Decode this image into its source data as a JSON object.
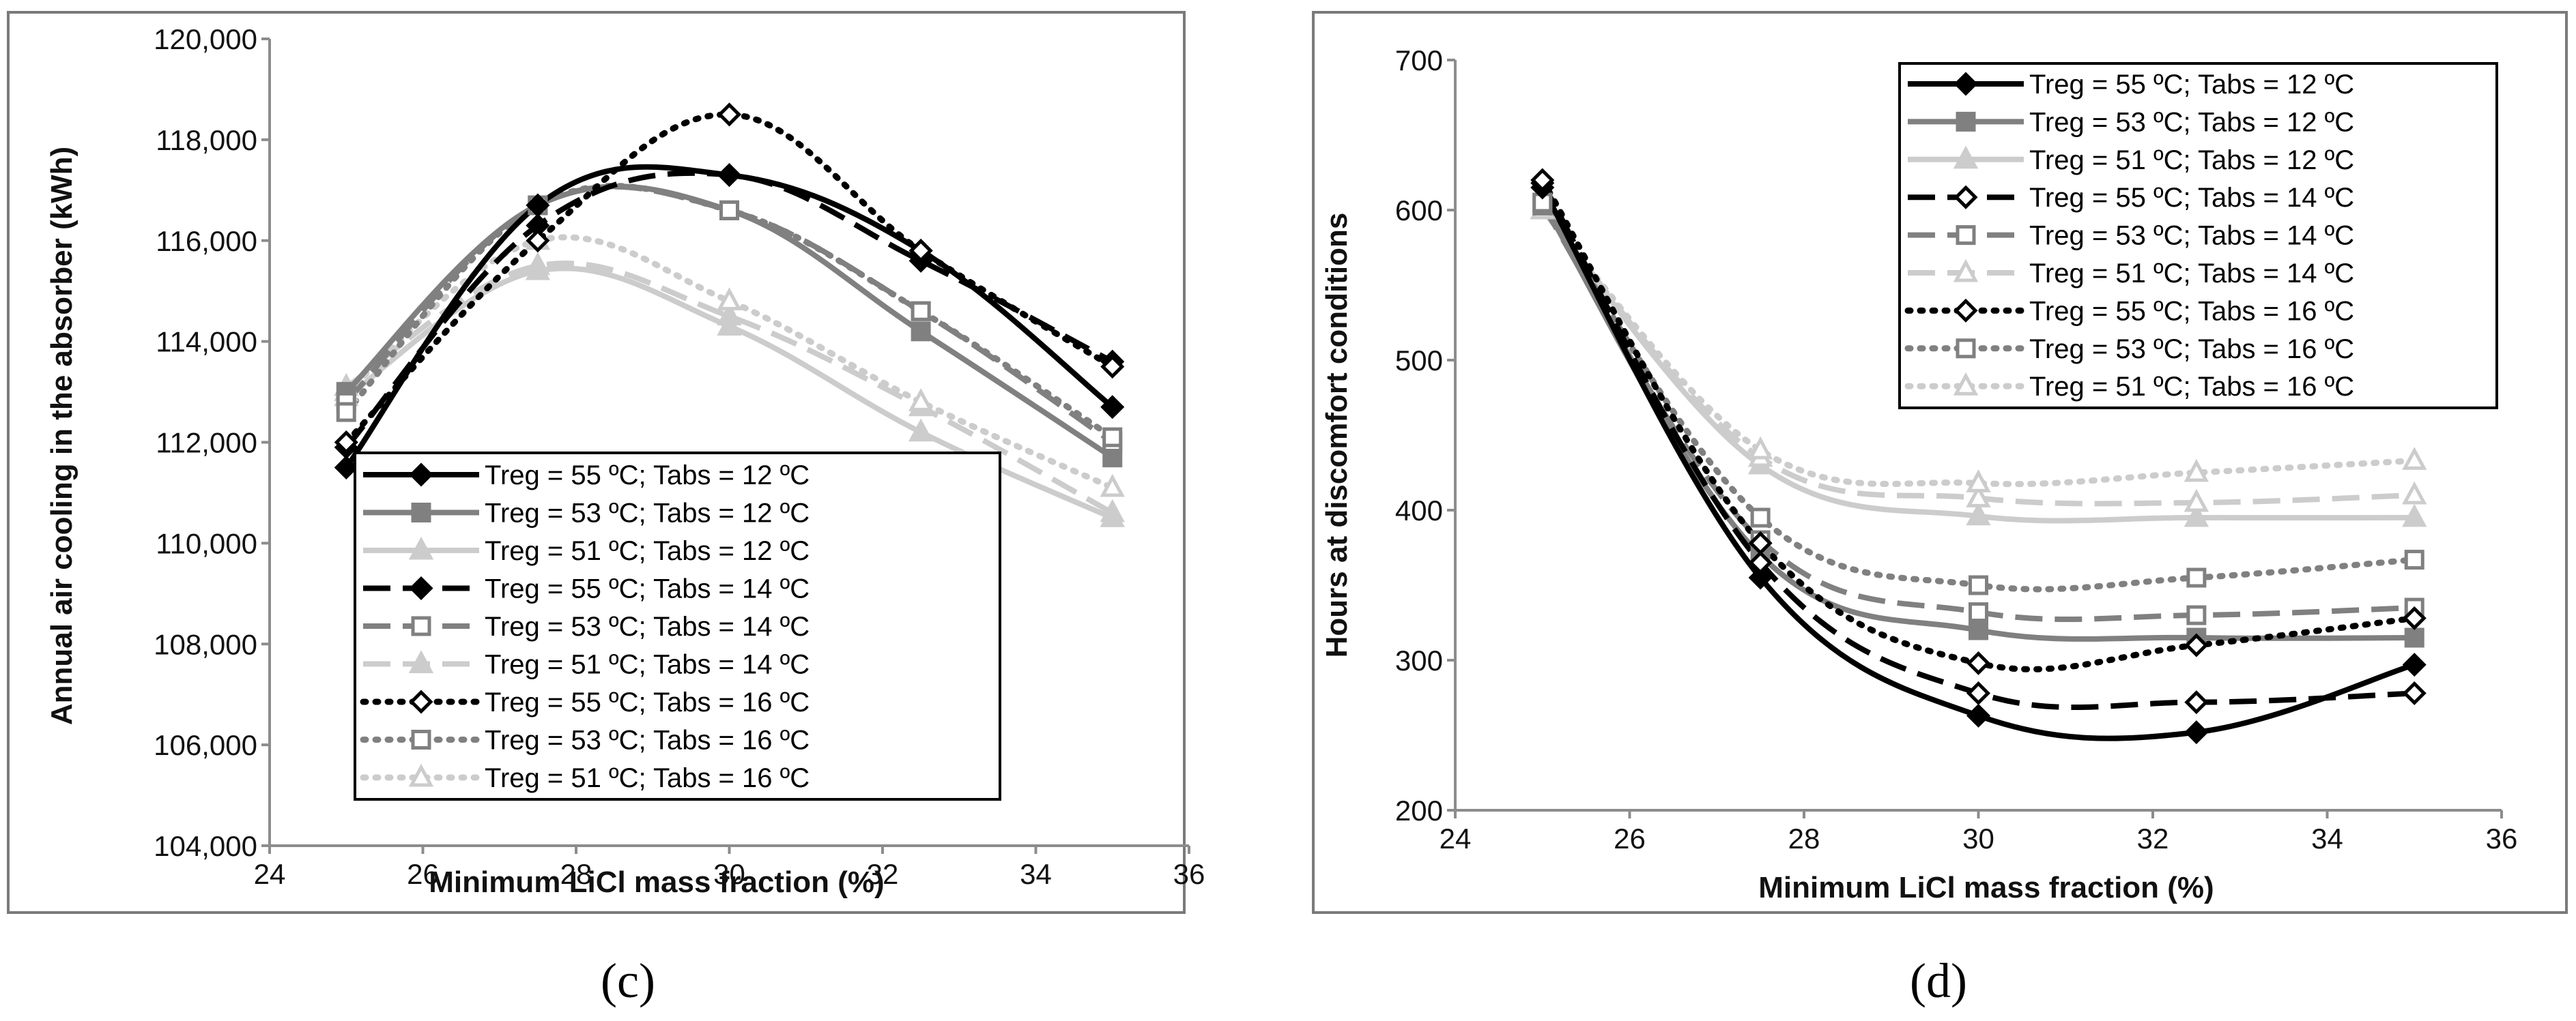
{
  "panels": [
    {
      "label": "(c)",
      "chart_data": {
        "type": "line",
        "title": "",
        "xlabel": "Minimum LiCl mass fraction (%)",
        "ylabel": "Annual air cooling in the absorber (kWh)",
        "xlim": [
          24,
          36
        ],
        "ylim": [
          104000,
          120000
        ],
        "xticks": [
          24,
          26,
          28,
          30,
          32,
          34,
          36
        ],
        "yticks": [
          104000,
          106000,
          108000,
          110000,
          112000,
          114000,
          116000,
          118000,
          120000
        ],
        "xtick_labels": [
          "24",
          "26",
          "28",
          "30",
          "32",
          "34",
          "36"
        ],
        "ytick_labels": [
          "104,000",
          "106,000",
          "108,000",
          "110,000",
          "112,000",
          "114,000",
          "116,000",
          "118,000",
          "120,000"
        ],
        "grid": false,
        "legend_position": "bottom-center",
        "x": [
          25,
          27.5,
          30,
          32.5,
          35
        ],
        "series": [
          {
            "name": "Treg = 55 ºC; Tabs = 12 ºC",
            "values": [
              111500,
              116700,
              117300,
              115800,
              112700
            ],
            "color": "#000000",
            "dash": "solid",
            "marker": "diamond",
            "fill": "#000000"
          },
          {
            "name": "Treg = 53 ºC; Tabs = 12 ºC",
            "values": [
              113000,
              116700,
              116600,
              114200,
              111700
            ],
            "color": "#808080",
            "dash": "solid",
            "marker": "square",
            "fill": "#808080"
          },
          {
            "name": "Treg = 51 ºC; Tabs = 12 ºC",
            "values": [
              112900,
              115400,
              114300,
              112200,
              110500
            ],
            "color": "#cccccc",
            "dash": "solid",
            "marker": "triangle",
            "fill": "#cccccc"
          },
          {
            "name": "Treg = 55 ºC; Tabs = 14 ºC",
            "values": [
              111900,
              116300,
              117300,
              115600,
              113600
            ],
            "color": "#000000",
            "dash": "dash",
            "marker": "diamond",
            "fill": "#000000"
          },
          {
            "name": "Treg = 53 ºC; Tabs = 14 ºC",
            "values": [
              112800,
              116700,
              116600,
              114600,
              112000
            ],
            "color": "#808080",
            "dash": "dash",
            "marker": "square-open",
            "fill": "#ffffff"
          },
          {
            "name": "Treg = 51 ºC; Tabs = 14 ºC",
            "values": [
              113100,
              115500,
              114500,
              112700,
              110600
            ],
            "color": "#cccccc",
            "dash": "dash",
            "marker": "triangle",
            "fill": "#cccccc"
          },
          {
            "name": "Treg = 55 ºC; Tabs = 16 ºC",
            "values": [
              112000,
              116000,
              118500,
              115800,
              113500
            ],
            "color": "#000000",
            "dash": "dot",
            "marker": "diamond-open",
            "fill": "#ffffff"
          },
          {
            "name": "Treg = 53 ºC; Tabs = 16 ºC",
            "values": [
              112600,
              116700,
              116600,
              114600,
              112100
            ],
            "color": "#808080",
            "dash": "dot",
            "marker": "square-open",
            "fill": "#ffffff"
          },
          {
            "name": "Treg = 51 ºC; Tabs = 16 ºC",
            "values": [
              113000,
              116000,
              114800,
              112800,
              111100
            ],
            "color": "#cccccc",
            "dash": "dot",
            "marker": "triangle-open",
            "fill": "#ffffff"
          }
        ]
      }
    },
    {
      "label": "(d)",
      "chart_data": {
        "type": "line",
        "title": "",
        "xlabel": "Minimum LiCl mass fraction (%)",
        "ylabel": "Hours at  discomfort conditions",
        "xlim": [
          24,
          36
        ],
        "ylim": [
          200,
          700
        ],
        "xticks": [
          24,
          26,
          28,
          30,
          32,
          34,
          36
        ],
        "yticks": [
          200,
          300,
          400,
          500,
          600,
          700
        ],
        "xtick_labels": [
          "24",
          "26",
          "28",
          "30",
          "32",
          "34",
          "36"
        ],
        "ytick_labels": [
          "200",
          "300",
          "400",
          "500",
          "600",
          "700"
        ],
        "grid": false,
        "legend_position": "top-right",
        "x": [
          25,
          27.5,
          30,
          32.5,
          35
        ],
        "series": [
          {
            "name": "Treg = 55 ºC; Tabs = 12 ºC",
            "values": [
              615,
              355,
              263,
              252,
              297
            ],
            "color": "#000000",
            "dash": "solid",
            "marker": "diamond",
            "fill": "#000000"
          },
          {
            "name": "Treg = 53 ºC; Tabs = 12 ºC",
            "values": [
              605,
              370,
              320,
              315,
              315
            ],
            "color": "#808080",
            "dash": "solid",
            "marker": "square",
            "fill": "#808080"
          },
          {
            "name": "Treg = 51 ºC; Tabs = 12 ºC",
            "values": [
              600,
              430,
              396,
              395,
              395
            ],
            "color": "#cccccc",
            "dash": "solid",
            "marker": "triangle",
            "fill": "#cccccc"
          },
          {
            "name": "Treg = 55 ºC; Tabs = 14 ºC",
            "values": [
              618,
              365,
              278,
              272,
              278
            ],
            "color": "#000000",
            "dash": "dash",
            "marker": "diamond-open",
            "fill": "#ffffff"
          },
          {
            "name": "Treg = 53 ºC; Tabs = 14 ºC",
            "values": [
              603,
              380,
              332,
              330,
              335
            ],
            "color": "#808080",
            "dash": "dash",
            "marker": "square-open",
            "fill": "#ffffff"
          },
          {
            "name": "Treg = 51 ºC; Tabs = 14 ºC",
            "values": [
              600,
              435,
              408,
              405,
              410
            ],
            "color": "#cccccc",
            "dash": "dash",
            "marker": "triangle-open",
            "fill": "#ffffff"
          },
          {
            "name": "Treg = 55 ºC; Tabs = 16 ºC",
            "values": [
              620,
              378,
              298,
              310,
              328
            ],
            "color": "#000000",
            "dash": "dot",
            "marker": "diamond-open",
            "fill": "#ffffff"
          },
          {
            "name": "Treg = 53 ºC; Tabs = 16 ºC",
            "values": [
              605,
              395,
              350,
              355,
              367
            ],
            "color": "#808080",
            "dash": "dot",
            "marker": "square-open",
            "fill": "#ffffff"
          },
          {
            "name": "Treg = 51 ºC; Tabs = 16 ºC",
            "values": [
              600,
              440,
              418,
              425,
              433
            ],
            "color": "#cccccc",
            "dash": "dot",
            "marker": "triangle-open",
            "fill": "#ffffff"
          }
        ]
      }
    }
  ]
}
